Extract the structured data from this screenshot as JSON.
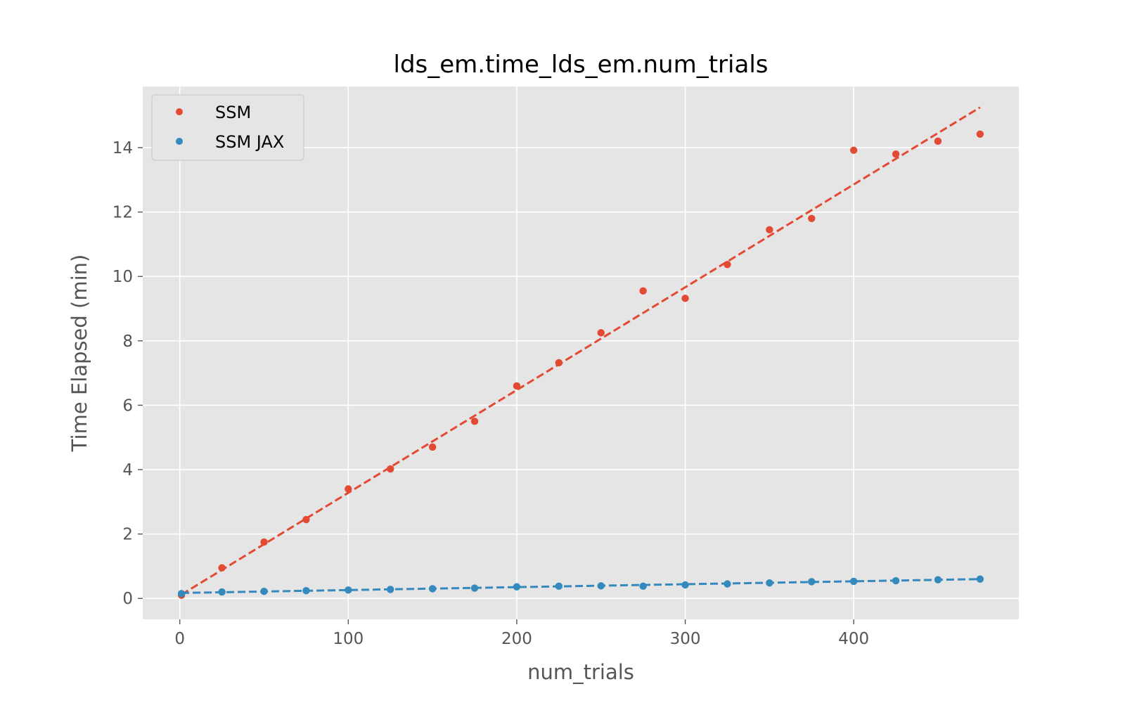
{
  "chart_data": {
    "type": "scatter",
    "title": "lds_em.time_lds_em.num_trials",
    "xlabel": "num_trials",
    "ylabel": "Time Elapsed (min)",
    "xlim": [
      -22,
      498
    ],
    "ylim": [
      -0.65,
      15.9
    ],
    "xticks": [
      0,
      100,
      200,
      300,
      400
    ],
    "yticks": [
      0,
      2,
      4,
      6,
      8,
      10,
      12,
      14
    ],
    "grid": true,
    "legend_position": "top-left",
    "series": [
      {
        "name": "SSM",
        "color": "#E24A33",
        "x": [
          1,
          25,
          50,
          75,
          100,
          125,
          150,
          175,
          200,
          225,
          250,
          275,
          300,
          325,
          350,
          375,
          400,
          425,
          450,
          475
        ],
        "y": [
          0.1,
          0.95,
          1.75,
          2.45,
          3.4,
          4.02,
          4.7,
          5.5,
          6.6,
          7.32,
          8.25,
          9.55,
          9.32,
          10.37,
          11.45,
          11.8,
          13.92,
          13.8,
          14.2,
          14.42
        ],
        "trend": [
          [
            1,
            0.12
          ],
          [
            475,
            15.25
          ]
        ]
      },
      {
        "name": "SSM JAX",
        "color": "#348ABD",
        "x": [
          1,
          25,
          50,
          75,
          100,
          125,
          150,
          175,
          200,
          225,
          250,
          275,
          300,
          325,
          350,
          375,
          400,
          425,
          450,
          475
        ],
        "y": [
          0.15,
          0.2,
          0.22,
          0.24,
          0.26,
          0.28,
          0.3,
          0.32,
          0.36,
          0.38,
          0.39,
          0.38,
          0.42,
          0.45,
          0.48,
          0.52,
          0.53,
          0.55,
          0.58,
          0.6
        ],
        "trend": [
          [
            1,
            0.17
          ],
          [
            475,
            0.6
          ]
        ]
      }
    ]
  }
}
